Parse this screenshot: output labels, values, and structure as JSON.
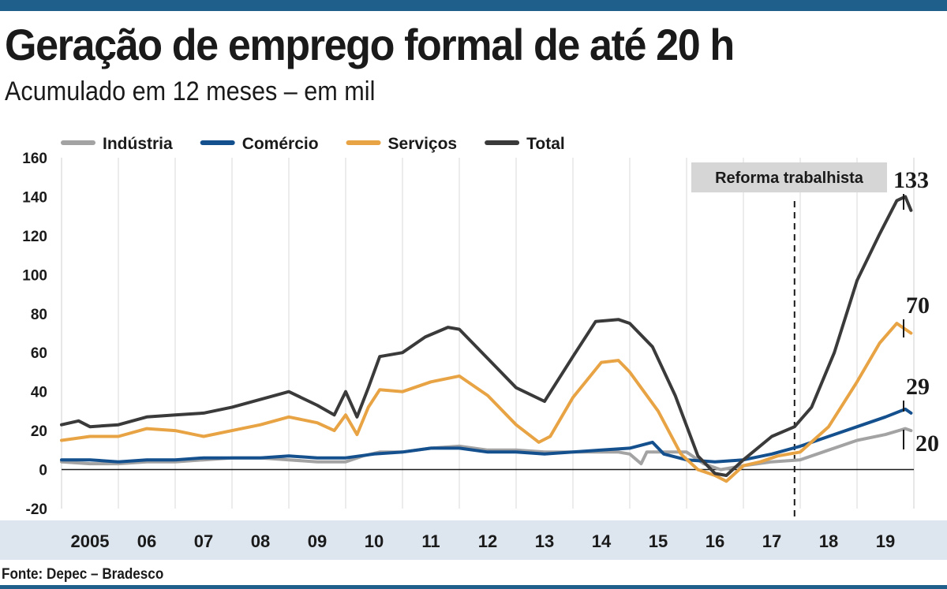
{
  "header": {
    "title": "Geração de emprego formal de até 20 h",
    "subtitle": "Acumulado em 12 meses – em mil"
  },
  "footer": {
    "source": "Fonte: Depec – Bradesco"
  },
  "chart_data": {
    "type": "line",
    "title": "Geração de emprego formal de até 20 h",
    "subtitle": "Acumulado em 12 meses – em mil",
    "xlabel": "",
    "ylabel": "",
    "xlim": [
      2005.0,
      2020.0
    ],
    "ylim": [
      -20,
      160
    ],
    "yticks": [
      -20,
      0,
      20,
      40,
      60,
      80,
      100,
      120,
      140,
      160
    ],
    "xticks": [
      {
        "x": 2005.5,
        "label": "2005"
      },
      {
        "x": 2006.5,
        "label": "06"
      },
      {
        "x": 2007.5,
        "label": "07"
      },
      {
        "x": 2008.5,
        "label": "08"
      },
      {
        "x": 2009.5,
        "label": "09"
      },
      {
        "x": 2010.5,
        "label": "10"
      },
      {
        "x": 2011.5,
        "label": "11"
      },
      {
        "x": 2012.5,
        "label": "12"
      },
      {
        "x": 2013.5,
        "label": "13"
      },
      {
        "x": 2014.5,
        "label": "14"
      },
      {
        "x": 2015.5,
        "label": "15"
      },
      {
        "x": 2016.5,
        "label": "16"
      },
      {
        "x": 2017.5,
        "label": "17"
      },
      {
        "x": 2018.5,
        "label": "18"
      },
      {
        "x": 2019.5,
        "label": "19"
      }
    ],
    "grid": "vertical",
    "legend": "top",
    "annotation": {
      "x": 2017.9,
      "label": "Reforma trabalhista"
    },
    "series": [
      {
        "name": "Indústria",
        "color": "#a3a3a3",
        "end_label": "20",
        "points": [
          [
            2005.0,
            4
          ],
          [
            2005.5,
            3
          ],
          [
            2006.0,
            3
          ],
          [
            2006.5,
            4
          ],
          [
            2007.0,
            4
          ],
          [
            2007.5,
            5
          ],
          [
            2008.0,
            6
          ],
          [
            2008.5,
            6
          ],
          [
            2009.0,
            5
          ],
          [
            2009.5,
            4
          ],
          [
            2010.0,
            4
          ],
          [
            2010.3,
            7
          ],
          [
            2010.6,
            9
          ],
          [
            2011.0,
            9
          ],
          [
            2011.5,
            11
          ],
          [
            2012.0,
            12
          ],
          [
            2012.5,
            10
          ],
          [
            2013.0,
            10
          ],
          [
            2013.5,
            9
          ],
          [
            2014.0,
            9
          ],
          [
            2014.5,
            9
          ],
          [
            2014.8,
            9
          ],
          [
            2015.0,
            8
          ],
          [
            2015.2,
            3
          ],
          [
            2015.3,
            9
          ],
          [
            2015.6,
            9
          ],
          [
            2016.0,
            9
          ],
          [
            2016.3,
            3
          ],
          [
            2016.6,
            0
          ],
          [
            2017.0,
            2
          ],
          [
            2017.5,
            4
          ],
          [
            2018.0,
            5
          ],
          [
            2018.5,
            10
          ],
          [
            2019.0,
            15
          ],
          [
            2019.5,
            18
          ],
          [
            2019.85,
            21
          ],
          [
            2019.95,
            20
          ]
        ]
      },
      {
        "name": "Comércio",
        "color": "#14508e",
        "end_label": "29",
        "points": [
          [
            2005.0,
            5
          ],
          [
            2005.5,
            5
          ],
          [
            2006.0,
            4
          ],
          [
            2006.5,
            5
          ],
          [
            2007.0,
            5
          ],
          [
            2007.5,
            6
          ],
          [
            2008.0,
            6
          ],
          [
            2008.5,
            6
          ],
          [
            2009.0,
            7
          ],
          [
            2009.5,
            6
          ],
          [
            2010.0,
            6
          ],
          [
            2010.5,
            8
          ],
          [
            2011.0,
            9
          ],
          [
            2011.5,
            11
          ],
          [
            2012.0,
            11
          ],
          [
            2012.5,
            9
          ],
          [
            2013.0,
            9
          ],
          [
            2013.5,
            8
          ],
          [
            2014.0,
            9
          ],
          [
            2014.5,
            10
          ],
          [
            2015.0,
            11
          ],
          [
            2015.4,
            14
          ],
          [
            2015.6,
            8
          ],
          [
            2016.0,
            5
          ],
          [
            2016.5,
            4
          ],
          [
            2017.0,
            5
          ],
          [
            2017.5,
            8
          ],
          [
            2018.0,
            12
          ],
          [
            2018.5,
            17
          ],
          [
            2019.0,
            22
          ],
          [
            2019.5,
            27
          ],
          [
            2019.85,
            31
          ],
          [
            2019.95,
            29
          ]
        ]
      },
      {
        "name": "Serviços",
        "color": "#e8a444",
        "end_label": "70",
        "points": [
          [
            2005.0,
            15
          ],
          [
            2005.5,
            17
          ],
          [
            2006.0,
            17
          ],
          [
            2006.5,
            21
          ],
          [
            2007.0,
            20
          ],
          [
            2007.5,
            17
          ],
          [
            2008.0,
            20
          ],
          [
            2008.5,
            23
          ],
          [
            2009.0,
            27
          ],
          [
            2009.5,
            24
          ],
          [
            2009.8,
            20
          ],
          [
            2010.0,
            28
          ],
          [
            2010.2,
            18
          ],
          [
            2010.4,
            32
          ],
          [
            2010.6,
            41
          ],
          [
            2011.0,
            40
          ],
          [
            2011.5,
            45
          ],
          [
            2012.0,
            48
          ],
          [
            2012.5,
            38
          ],
          [
            2013.0,
            23
          ],
          [
            2013.4,
            14
          ],
          [
            2013.6,
            17
          ],
          [
            2014.0,
            37
          ],
          [
            2014.5,
            55
          ],
          [
            2014.8,
            56
          ],
          [
            2015.0,
            50
          ],
          [
            2015.5,
            30
          ],
          [
            2015.9,
            8
          ],
          [
            2016.2,
            0
          ],
          [
            2016.5,
            -3
          ],
          [
            2016.7,
            -6
          ],
          [
            2017.0,
            2
          ],
          [
            2017.3,
            4
          ],
          [
            2017.6,
            7
          ],
          [
            2018.0,
            9
          ],
          [
            2018.5,
            22
          ],
          [
            2019.0,
            45
          ],
          [
            2019.4,
            65
          ],
          [
            2019.7,
            75
          ],
          [
            2019.85,
            72
          ],
          [
            2019.95,
            70
          ]
        ]
      },
      {
        "name": "Total",
        "color": "#3a3a3a",
        "end_label": "133",
        "points": [
          [
            2005.0,
            23
          ],
          [
            2005.3,
            25
          ],
          [
            2005.5,
            22
          ],
          [
            2006.0,
            23
          ],
          [
            2006.5,
            27
          ],
          [
            2007.0,
            28
          ],
          [
            2007.5,
            29
          ],
          [
            2008.0,
            32
          ],
          [
            2008.5,
            36
          ],
          [
            2009.0,
            40
          ],
          [
            2009.5,
            33
          ],
          [
            2009.8,
            28
          ],
          [
            2010.0,
            40
          ],
          [
            2010.2,
            27
          ],
          [
            2010.4,
            42
          ],
          [
            2010.6,
            58
          ],
          [
            2011.0,
            60
          ],
          [
            2011.4,
            68
          ],
          [
            2011.8,
            73
          ],
          [
            2012.0,
            72
          ],
          [
            2012.5,
            57
          ],
          [
            2013.0,
            42
          ],
          [
            2013.5,
            35
          ],
          [
            2014.0,
            58
          ],
          [
            2014.4,
            76
          ],
          [
            2014.8,
            77
          ],
          [
            2015.0,
            75
          ],
          [
            2015.4,
            63
          ],
          [
            2015.8,
            38
          ],
          [
            2016.2,
            7
          ],
          [
            2016.5,
            -2
          ],
          [
            2016.7,
            -3
          ],
          [
            2017.0,
            5
          ],
          [
            2017.5,
            17
          ],
          [
            2017.9,
            22
          ],
          [
            2018.2,
            32
          ],
          [
            2018.6,
            60
          ],
          [
            2019.0,
            97
          ],
          [
            2019.4,
            121
          ],
          [
            2019.7,
            138
          ],
          [
            2019.85,
            140
          ],
          [
            2019.95,
            133
          ]
        ]
      }
    ]
  }
}
